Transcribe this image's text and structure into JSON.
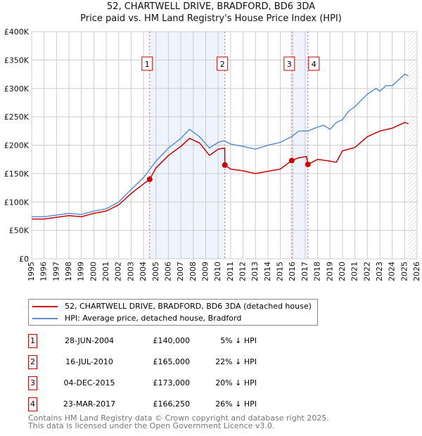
{
  "chart_data": {
    "type": "line",
    "title": "52, CHARTWELL DRIVE, BRADFORD, BD6 3DA",
    "subtitle": "Price paid vs. HM Land Registry's House Price Index (HPI)",
    "xlim": [
      1995,
      2026
    ],
    "ylim": [
      0,
      400000
    ],
    "x_ticks": [
      "1995",
      "1996",
      "1997",
      "1998",
      "1999",
      "2000",
      "2001",
      "2002",
      "2003",
      "2004",
      "2005",
      "2006",
      "2007",
      "2008",
      "2009",
      "2010",
      "2011",
      "2012",
      "2013",
      "2014",
      "2015",
      "2016",
      "2017",
      "2018",
      "2019",
      "2020",
      "2021",
      "2022",
      "2023",
      "2024",
      "2025",
      "2026"
    ],
    "y_ticks": [
      {
        "v": 0,
        "l": "£0"
      },
      {
        "v": 50000,
        "l": "£50K"
      },
      {
        "v": 100000,
        "l": "£100K"
      },
      {
        "v": 150000,
        "l": "£150K"
      },
      {
        "v": 200000,
        "l": "£200K"
      },
      {
        "v": 250000,
        "l": "£250K"
      },
      {
        "v": 300000,
        "l": "£300K"
      },
      {
        "v": 350000,
        "l": "£350K"
      },
      {
        "v": 400000,
        "l": "£400K"
      }
    ],
    "grid": true,
    "series": [
      {
        "name": "52, CHARTWELL DRIVE, BRADFORD, BD6 3DA (detached house)",
        "color": "#cc0000",
        "x": [
          1995,
          1996,
          1997,
          1998,
          1999,
          2000,
          2001,
          2002,
          2003,
          2004,
          2004.49,
          2005,
          2006,
          2007,
          2007.7,
          2008.5,
          2009.3,
          2010,
          2010.53,
          2010.54,
          2011,
          2012,
          2013,
          2014,
          2015,
          2015.92,
          2016.5,
          2017.1,
          2017.22,
          2018,
          2019,
          2019.5,
          2020,
          2021,
          2022,
          2023,
          2024,
          2025,
          2025.3
        ],
        "y": [
          70000,
          70000,
          73000,
          76000,
          74000,
          80000,
          84000,
          95000,
          115000,
          132000,
          140000,
          160000,
          182000,
          198000,
          212000,
          204000,
          182000,
          193000,
          195000,
          165000,
          158000,
          155000,
          150000,
          154000,
          158000,
          173000,
          178000,
          180000,
          166250,
          175000,
          172000,
          170000,
          190000,
          196000,
          215000,
          225000,
          230000,
          240000,
          238000
        ]
      },
      {
        "name": "HPI: Average price, detached house, Bradford",
        "color": "#5b8fd6",
        "x": [
          1995,
          1996,
          1997,
          1998,
          1999,
          2000,
          2001,
          2002,
          2003,
          2004,
          2005,
          2006,
          2007,
          2007.7,
          2008.5,
          2009.3,
          2010,
          2010.5,
          2011,
          2012,
          2013,
          2014,
          2015,
          2015.9,
          2016.5,
          2017.2,
          2018,
          2018.5,
          2019,
          2019.5,
          2020,
          2020.5,
          2021,
          2022,
          2022.7,
          2023,
          2023.5,
          2024,
          2024.5,
          2025,
          2025.3
        ],
        "y": [
          74000,
          74000,
          77000,
          80000,
          78000,
          84000,
          88000,
          100000,
          122000,
          143000,
          172000,
          195000,
          212000,
          228000,
          215000,
          195000,
          205000,
          208000,
          202000,
          198000,
          193000,
          200000,
          205000,
          215000,
          225000,
          225000,
          232000,
          235000,
          228000,
          240000,
          245000,
          260000,
          268000,
          290000,
          300000,
          295000,
          305000,
          305000,
          315000,
          325000,
          322000
        ]
      }
    ],
    "sales": [
      {
        "n": "1",
        "x": 2004.49,
        "y": 140000,
        "date": "28-JUN-2004",
        "price": "£140,000",
        "hpi": "5% ↓ HPI"
      },
      {
        "n": "2",
        "x": 2010.54,
        "y": 165000,
        "date": "16-JUL-2010",
        "price": "£165,000",
        "hpi": "22% ↓ HPI"
      },
      {
        "n": "3",
        "x": 2015.92,
        "y": 173000,
        "date": "04-DEC-2015",
        "price": "£173,000",
        "hpi": "20% ↓ HPI"
      },
      {
        "n": "4",
        "x": 2017.22,
        "y": 166250,
        "date": "23-MAR-2017",
        "price": "£166,250",
        "hpi": "26% ↓ HPI"
      }
    ],
    "shaded_ranges": [
      [
        2004.49,
        2010.54
      ],
      [
        2015.92,
        2017.22
      ]
    ],
    "forecast_start": 2025.25
  },
  "footer": {
    "line1": "Contains HM Land Registry data © Crown copyright and database right 2025.",
    "line2": "This data is licensed under the Open Government Licence v3.0."
  }
}
